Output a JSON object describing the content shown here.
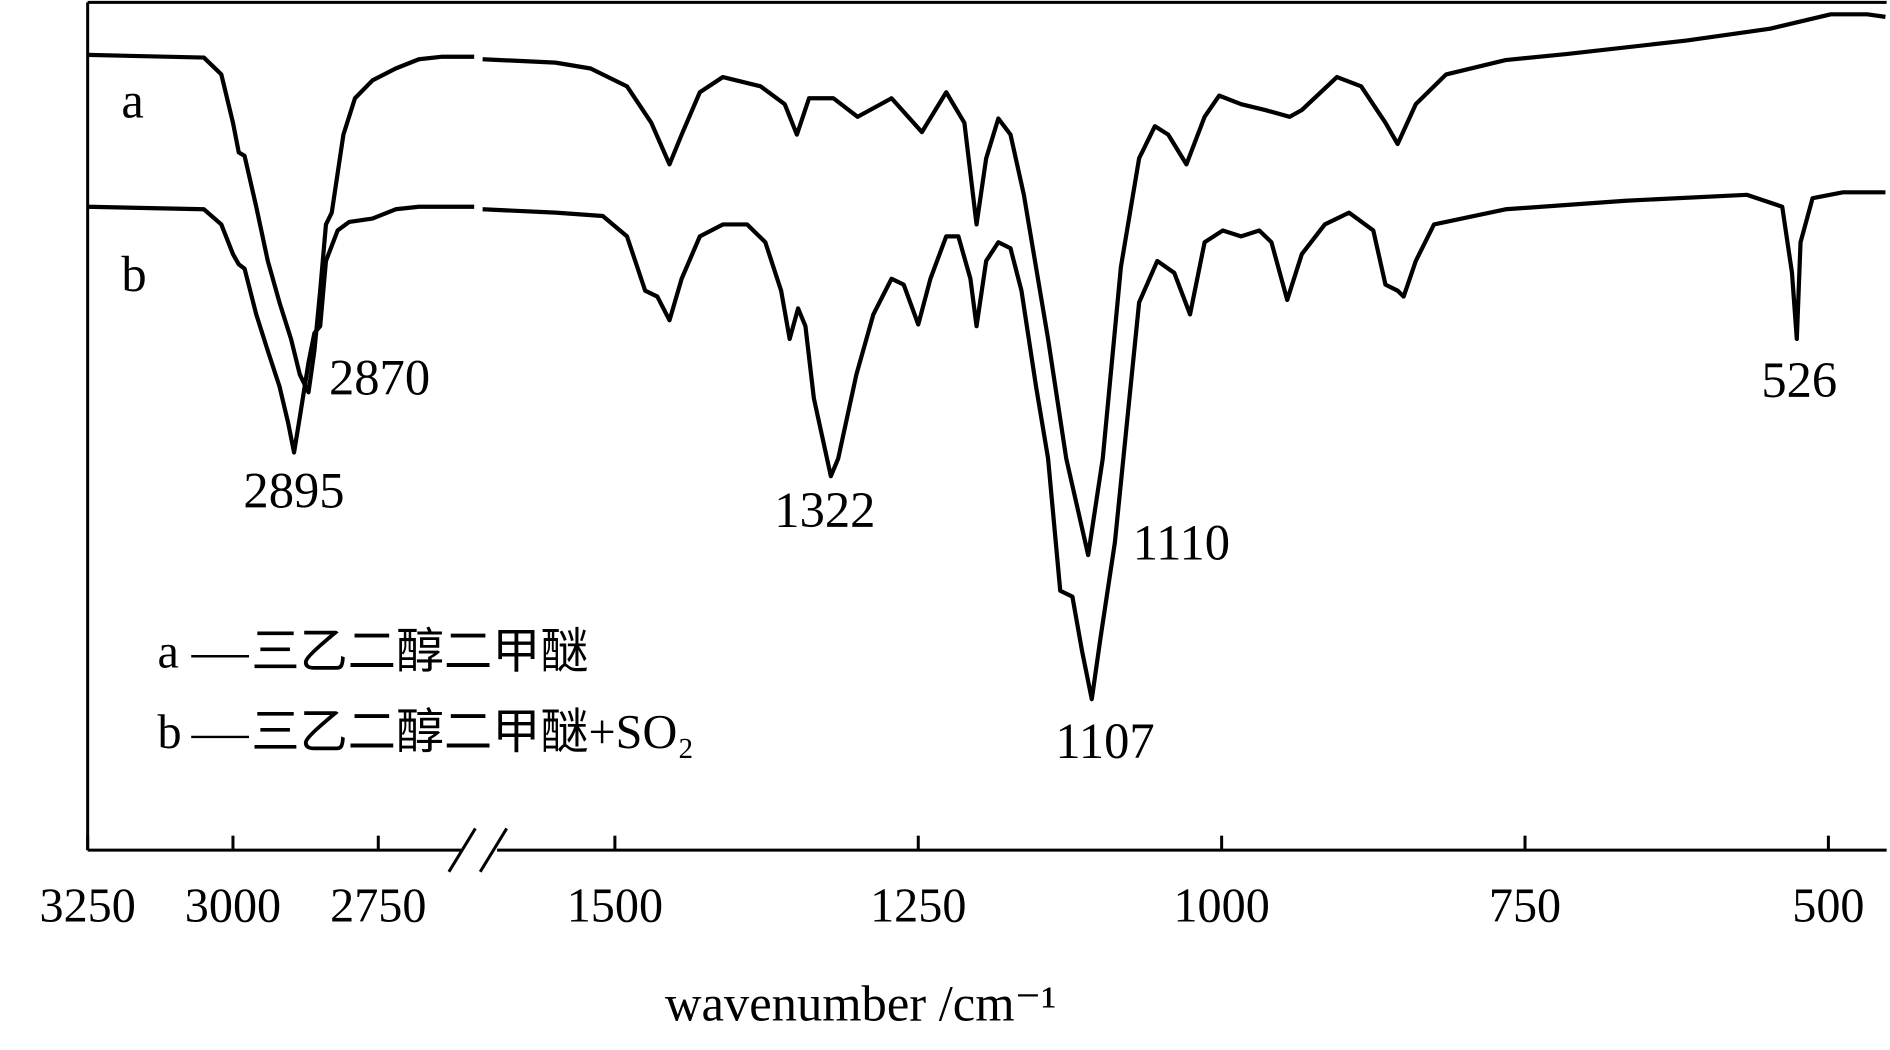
{
  "chart_data": {
    "type": "line",
    "xlabel": "wavenumber /cm⁻¹",
    "xlim": [
      3250,
      453
    ],
    "xbreak": [
      2585,
      1609
    ],
    "xticks": [
      3250,
      3000,
      2750,
      1500,
      1250,
      1000,
      750,
      500
    ],
    "ylim": [
      0,
      100
    ],
    "grid": false,
    "annotations": [
      2870,
      2895,
      1322,
      1110,
      1107,
      526
    ],
    "series": [
      {
        "name": "a",
        "label": "三乙二醇二甲醚",
        "color": "#000000",
        "x": [
          3250,
          3050,
          3020,
          3000,
          2990,
          2980,
          2960,
          2940,
          2920,
          2900,
          2885,
          2870,
          2860,
          2850,
          2840,
          2830,
          2810,
          2790,
          2760,
          2720,
          2680,
          2640,
          2585,
          1609,
          1549,
          1520,
          1490,
          1470,
          1455,
          1445,
          1430,
          1411,
          1380,
          1360,
          1350,
          1340,
          1320,
          1300,
          1272,
          1247,
          1227,
          1212,
          1202,
          1194,
          1184,
          1174,
          1163,
          1143,
          1128,
          1110,
          1098,
          1083,
          1068,
          1055,
          1044,
          1029,
          1014,
          1002,
          984,
          964,
          944,
          934,
          905,
          885,
          865,
          855,
          840,
          815,
          766,
          716,
          617,
          548,
          498,
          468,
          453
        ],
        "values": [
          93.8,
          93.5,
          91.5,
          85.8,
          82.3,
          81.9,
          75.9,
          69.5,
          64.6,
          60.3,
          56.1,
          54.0,
          58.9,
          66.0,
          73.8,
          75.2,
          84.4,
          88.7,
          90.8,
          92.2,
          93.3,
          93.6,
          93.6,
          93.3,
          92.9,
          92.2,
          90.1,
          85.8,
          80.9,
          84.4,
          89.4,
          91.2,
          90.1,
          88.0,
          84.4,
          88.7,
          88.7,
          86.5,
          88.7,
          84.7,
          89.4,
          85.8,
          73.8,
          81.6,
          86.3,
          84.4,
          77.3,
          60.3,
          46.2,
          34.8,
          46.2,
          68.8,
          81.6,
          85.4,
          84.4,
          80.9,
          86.5,
          89.0,
          88.0,
          87.3,
          86.5,
          87.3,
          91.2,
          90.1,
          85.8,
          83.3,
          88.0,
          91.5,
          93.2,
          93.9,
          95.5,
          96.9,
          98.6,
          98.6,
          98.3
        ]
      },
      {
        "name": "b",
        "label": "三乙二醇二甲醚+SO₂",
        "color": "#000000",
        "x": [
          3250,
          3050,
          3020,
          3000,
          2990,
          2980,
          2960,
          2940,
          2920,
          2905,
          2895,
          2885,
          2870,
          2860,
          2850,
          2840,
          2820,
          2800,
          2760,
          2720,
          2680,
          2640,
          2585,
          1609,
          1549,
          1510,
          1490,
          1475,
          1465,
          1455,
          1445,
          1430,
          1411,
          1391,
          1376,
          1363,
          1356,
          1349,
          1343,
          1336,
          1322,
          1316,
          1301,
          1287,
          1272,
          1262,
          1250,
          1240,
          1227,
          1217,
          1207,
          1202,
          1194,
          1184,
          1174,
          1165,
          1153,
          1143,
          1133,
          1123,
          1115,
          1107,
          1100,
          1088,
          1078,
          1068,
          1053,
          1039,
          1026,
          1014,
          999,
          984,
          969,
          959,
          946,
          934,
          915,
          895,
          875,
          865,
          855,
          850,
          840,
          825,
          766,
          667,
          567,
          538,
          530,
          526,
          523,
          513,
          488,
          453
        ],
        "values": [
          75.9,
          75.6,
          73.8,
          70.3,
          69.1,
          68.6,
          63.2,
          58.9,
          54.7,
          50.4,
          46.9,
          51.1,
          57.5,
          61.0,
          61.8,
          69.5,
          73.1,
          74.1,
          74.5,
          75.6,
          75.9,
          75.9,
          75.9,
          75.6,
          75.2,
          74.8,
          72.4,
          66.0,
          65.3,
          62.5,
          67.4,
          72.4,
          73.8,
          73.8,
          71.7,
          66.0,
          60.3,
          63.9,
          61.8,
          53.3,
          44.1,
          46.2,
          56.1,
          63.2,
          67.4,
          66.7,
          62.0,
          67.4,
          72.4,
          72.4,
          67.4,
          61.8,
          69.5,
          71.7,
          71.0,
          66.0,
          54.7,
          46.2,
          30.6,
          29.9,
          23.5,
          17.8,
          24.9,
          36.3,
          50.4,
          64.6,
          69.5,
          68.1,
          63.2,
          71.7,
          73.1,
          72.4,
          73.1,
          71.7,
          64.9,
          70.3,
          73.8,
          75.2,
          73.1,
          66.7,
          66.0,
          65.3,
          69.5,
          73.8,
          75.6,
          76.6,
          77.3,
          75.9,
          68.1,
          60.3,
          71.7,
          76.9,
          77.6,
          77.6
        ]
      }
    ]
  }
}
